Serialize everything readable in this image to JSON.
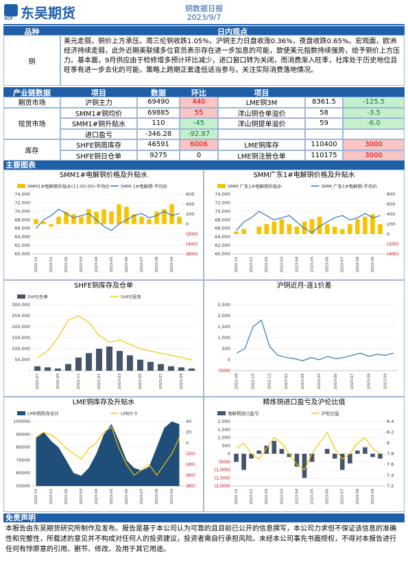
{
  "header": {
    "logo": "东吴期货",
    "logo_sub": "SCF",
    "title": "铜数据日报",
    "date": "2023/9/7"
  },
  "view": {
    "col1": "品种",
    "col2": "日内观点",
    "variety": "铜",
    "text": "美元走弱，铜价上方承压。周三伦铜收跌1.05%，沪铜主力日盘收涨0.36%，夜盘收跌0.65%。宏观面，欧洲经济持续走弱，此外近期美联储多位官员表示存在进一步加息的可能，致使美元指数持续强势，给予铜价上方压力。基本面，9月供应由于检修增多预计环比减少，进口窗口转为关闭，而消费渐入旺季，社库处于历史地位且旺季有进一步去化的可能，策略上跨期正套逢低适当参与，关注实际消费落地情况。"
  },
  "table": {
    "header": [
      "产业链数据",
      "项目",
      "数据",
      "环比",
      "项目"
    ],
    "groups": [
      {
        "name": "期货市场",
        "rows": [
          [
            "沪铜主力",
            "69490",
            "440",
            "LME铜3M",
            "8361.5",
            "-125.5"
          ]
        ]
      },
      {
        "name": "现货市场",
        "rows": [
          [
            "SMM1#铜均价",
            "69885",
            "55",
            "洋山铜仓单溢价",
            "58",
            "-3.5"
          ],
          [
            "SMM1#铜升贴水",
            "110",
            "-45",
            "洋山铜提单溢价",
            "59",
            "-6.0"
          ],
          [
            "进口盈亏",
            "-346.28",
            "-92.87"
          ]
        ]
      },
      {
        "name": "库存",
        "rows": [
          [
            "SHFE铜周库存",
            "46591",
            "6006",
            "LME铜库存",
            "110400",
            "3000"
          ],
          [
            "SHFE铜日仓单",
            "9275",
            "0",
            "LME铜注册仓单",
            "110175",
            "3000"
          ]
        ]
      }
    ]
  },
  "charts_title": "主要图表",
  "chart_data": [
    {
      "type": "combo",
      "title": "SMM1#电解铜价格及升贴水",
      "categories": [
        "2022-12",
        null,
        "2023-01",
        null,
        "2023-02",
        null,
        "2023-03",
        null,
        "2023-04",
        null,
        "2023-05",
        null,
        "2023-06",
        null,
        "2023-07",
        null,
        "2023-08",
        null,
        "2023-09",
        null
      ],
      "series": [
        {
          "name": "SMM1#电解铜升贴水(11:00:00)-平均价",
          "type": "bar",
          "axis": "y2",
          "color": "#f5c400",
          "values": [
            100,
            50,
            -50,
            150,
            250,
            200,
            150,
            300,
            250,
            300,
            250,
            400,
            350,
            200,
            150,
            100,
            250,
            300,
            400,
            150
          ]
        },
        {
          "name": "SMM 1#电解铜-平均价",
          "type": "line",
          "color": "#2e75b6",
          "values": [
            66000,
            68000,
            69000,
            70500,
            69500,
            68500,
            69000,
            69500,
            68000,
            66500,
            65500,
            67000,
            68000,
            69000,
            69500,
            68500,
            69000,
            70000,
            69000,
            69500
          ]
        }
      ],
      "ylim": [
        60000,
        74000
      ],
      "yticks": [
        {
          "value": 60000,
          "label": "60,000"
        },
        {
          "value": 62000,
          "label": "62,000"
        },
        {
          "value": 64000,
          "label": "64,000"
        },
        {
          "value": 66000,
          "label": "66,000"
        },
        {
          "value": 68000,
          "label": "68,000"
        },
        {
          "value": 70000,
          "label": "70,000"
        },
        {
          "value": 72000,
          "label": "72,000"
        },
        {
          "value": 74000,
          "label": "74,000"
        }
      ],
      "y2lim": [
        -600,
        600
      ],
      "y2ticks": [
        {
          "value": -600,
          "label": "(600)"
        },
        {
          "value": -400,
          "label": "(400)"
        },
        {
          "value": -200,
          "label": "(200)"
        },
        0,
        200,
        400,
        600
      ]
    },
    {
      "type": "combo",
      "title": "SMM广东1#电解铜价格及升贴水",
      "categories": [
        "2022-12",
        null,
        "2023-01",
        null,
        "2023-02",
        null,
        "2023-03",
        null,
        "2023-04",
        null,
        "2023-05",
        null,
        "2023-06",
        null,
        "2023-07",
        null,
        "2023-08",
        null,
        "2023-09",
        null
      ],
      "series": [
        {
          "name": "SMM 广东1#电解铜升贴水",
          "type": "bar",
          "axis": "y2",
          "color": "#f5c400",
          "values": [
            50,
            100,
            0,
            150,
            200,
            250,
            300,
            200,
            150,
            250,
            300,
            350,
            200,
            150,
            100,
            200,
            300,
            350,
            400,
            200
          ]
        },
        {
          "name": "SMM 广东1#电解铜-平均价",
          "type": "line",
          "color": "#2e75b6",
          "values": [
            65500,
            67500,
            68500,
            70000,
            69000,
            68000,
            68500,
            69000,
            67500,
            66000,
            65000,
            66500,
            67500,
            68500,
            69000,
            68000,
            68500,
            69500,
            68500,
            69000
          ]
        }
      ],
      "ylim": [
        60000,
        74000
      ],
      "yticks": [
        {
          "value": 60000,
          "label": "60,000"
        },
        {
          "value": 62000,
          "label": "62,000"
        },
        {
          "value": 64000,
          "label": "64,000"
        },
        {
          "value": 66000,
          "label": "66,000"
        },
        {
          "value": 68000,
          "label": "68,000"
        },
        {
          "value": 70000,
          "label": "70,000"
        },
        {
          "value": 72000,
          "label": "72,000"
        },
        {
          "value": 74000,
          "label": "74,000"
        }
      ],
      "y2lim": [
        -400,
        800
      ],
      "y2ticks": [
        {
          "value": -400,
          "label": "(400)"
        },
        {
          "value": -200,
          "label": "(200)"
        },
        0,
        200,
        400,
        600,
        800
      ]
    },
    {
      "type": "combo",
      "title": "SHFE铜库存及仓单",
      "categories": [
        "2022-07",
        null,
        "2022-09",
        null,
        "2022-11",
        null,
        "2023-01",
        null,
        "2023-03",
        null,
        "2023-05",
        null,
        "2023-07",
        null,
        "2023-09",
        null
      ],
      "series": [
        {
          "name": "SHFE仓单",
          "type": "bar",
          "color": "#44546a",
          "values": [
            20000,
            15000,
            10000,
            30000,
            60000,
            80000,
            100000,
            110000,
            90000,
            70000,
            50000,
            40000,
            30000,
            20000,
            15000,
            10000
          ]
        },
        {
          "name": "SHFE库存",
          "type": "line",
          "color": "#f5c400",
          "values": [
            60000,
            90000,
            150000,
            230000,
            250000,
            220000,
            160000,
            130000,
            140000,
            120000,
            100000,
            90000,
            80000,
            70000,
            60000,
            50000
          ]
        }
      ],
      "ylim": [
        0,
        300000
      ],
      "yticks": [
        {
          "value": 0,
          "label": "-"
        },
        {
          "value": 50000,
          "label": "50,000"
        },
        {
          "value": 100000,
          "label": "100,000"
        },
        {
          "value": 150000,
          "label": "150,000"
        },
        {
          "value": 200000,
          "label": "200,000"
        },
        {
          "value": 250000,
          "label": "250,000"
        },
        {
          "value": 300000,
          "label": "300,000"
        }
      ]
    },
    {
      "type": "line",
      "title": "沪铜近月-连1价差",
      "categories": [
        "2022-08",
        null,
        "2022-10",
        null,
        "2022-12",
        null,
        "2023-02",
        null,
        "2023-04",
        null,
        "2023-05",
        null,
        "2023-06",
        null,
        "2023-07",
        null,
        "2023-08",
        null,
        "2023-09",
        null
      ],
      "series": [
        {
          "type": "line",
          "color": "#2e75b6",
          "values": [
            300,
            500,
            1500,
            1800,
            600,
            200,
            100,
            50,
            -50,
            100,
            0,
            150,
            50,
            100,
            200,
            300,
            150,
            250,
            200,
            300
          ]
        }
      ],
      "ylim": [
        -500,
        2500
      ],
      "yticks": [
        {
          "value": -500,
          "label": "(500)"
        },
        0,
        500,
        {
          "value": 1000,
          "label": "1,000"
        },
        {
          "value": 1500,
          "label": "1,500"
        },
        {
          "value": 2000,
          "label": "2,000"
        },
        {
          "value": 2500,
          "label": "2,500"
        }
      ]
    },
    {
      "type": "combo",
      "title": "LME铜库存及升贴水",
      "categories": [
        "2022-12",
        null,
        "2023-01",
        null,
        "2023-02",
        null,
        "2023-03",
        null,
        "2023-04",
        null,
        "2023-05",
        null,
        "2023-06",
        null,
        "2023-07",
        null,
        "2023-08",
        null,
        "2023-09",
        null
      ],
      "series": [
        {
          "name": "LME铜库存总计",
          "type": "area",
          "color": "#1f4e79",
          "values": [
            88000,
            92000,
            85000,
            80000,
            70000,
            60000,
            58000,
            64000,
            75000,
            90000,
            98000,
            85000,
            70000,
            64000,
            62000,
            65000,
            80000,
            95000,
            100000,
            98000
          ]
        },
        {
          "name": "LME0-3",
          "type": "line",
          "axis": "y2",
          "color": "#f5c400",
          "values": [
            10,
            20,
            15,
            5,
            -10,
            -20,
            -30,
            -10,
            0,
            20,
            30,
            -10,
            -40,
            -60,
            -50,
            -40,
            -60,
            -40,
            -20,
            10
          ]
        }
      ],
      "ylim": [
        50000,
        100000
      ],
      "yticks": [
        50000,
        60000,
        70000,
        80000,
        90000,
        100000
      ],
      "y2lim": [
        -80,
        40
      ],
      "y2ticks": [
        {
          "value": -80,
          "label": "(80)"
        },
        {
          "value": -60,
          "label": "(60)"
        },
        {
          "value": -40,
          "label": "(40)"
        },
        {
          "value": -20,
          "label": "(20)"
        },
        0,
        20,
        40
      ]
    },
    {
      "type": "combo",
      "title": "精炼铜进口盈亏及沪伦比值",
      "categories": [
        "2022-12",
        null,
        "2023-01",
        null,
        "2023-02",
        null,
        "2023-03",
        null,
        "2023-04",
        null,
        "2023-05",
        null,
        "2023-06",
        null,
        "2023-07",
        null,
        "2023-08",
        null,
        "2023-09",
        null
      ],
      "series": [
        {
          "name": "电解铜进口盈亏",
          "type": "bar",
          "color": "#44546a",
          "values": [
            -500,
            -1000,
            -300,
            200,
            500,
            800,
            300,
            -200,
            -800,
            -1500,
            -500,
            0,
            300,
            -300,
            -1000,
            -600,
            200,
            400,
            -200,
            -300
          ]
        },
        {
          "name": "沪伦比值",
          "type": "line",
          "axis": "y2",
          "color": "#f5c400",
          "values": [
            7.9,
            8.0,
            7.8,
            7.7,
            7.9,
            8.1,
            8.0,
            7.8,
            7.6,
            7.5,
            7.8,
            8.0,
            8.2,
            7.9,
            7.7,
            7.8,
            8.0,
            8.1,
            7.9,
            7.8
          ]
        }
      ],
      "ylim": [
        -2000,
        2000
      ],
      "yticks": [
        {
          "value": -2000,
          "label": "(2,000)"
        },
        {
          "value": -1500,
          "label": "(1,500)"
        },
        {
          "value": -1000,
          "label": "(1,000)"
        },
        {
          "value": -500,
          "label": "(500)"
        },
        0,
        500,
        {
          "value": 1000,
          "label": "1,000"
        },
        {
          "value": 1500,
          "label": "1,500"
        },
        {
          "value": 2000,
          "label": "2,000"
        }
      ],
      "y2lim": [
        7.2,
        8.4
      ],
      "y2ticks": [
        7.2,
        7.4,
        7.6,
        7.8,
        8,
        8.2,
        8.4
      ]
    }
  ],
  "disclaimer": {
    "title": "免责声明",
    "text": "本报告由东吴期货研究所制作及发布。报告是基于本公司认为可靠的且目前已公开的信息撰写，本公司力求但不保证该信息的准确性和完整性，所载述的意见并不构成对任何人的投资建议，投资者需自行承担风险。未经本公司事先书面授权，不得对本报告进行任何有悖原意的引用、删节、修改、及用于其它用途。"
  }
}
